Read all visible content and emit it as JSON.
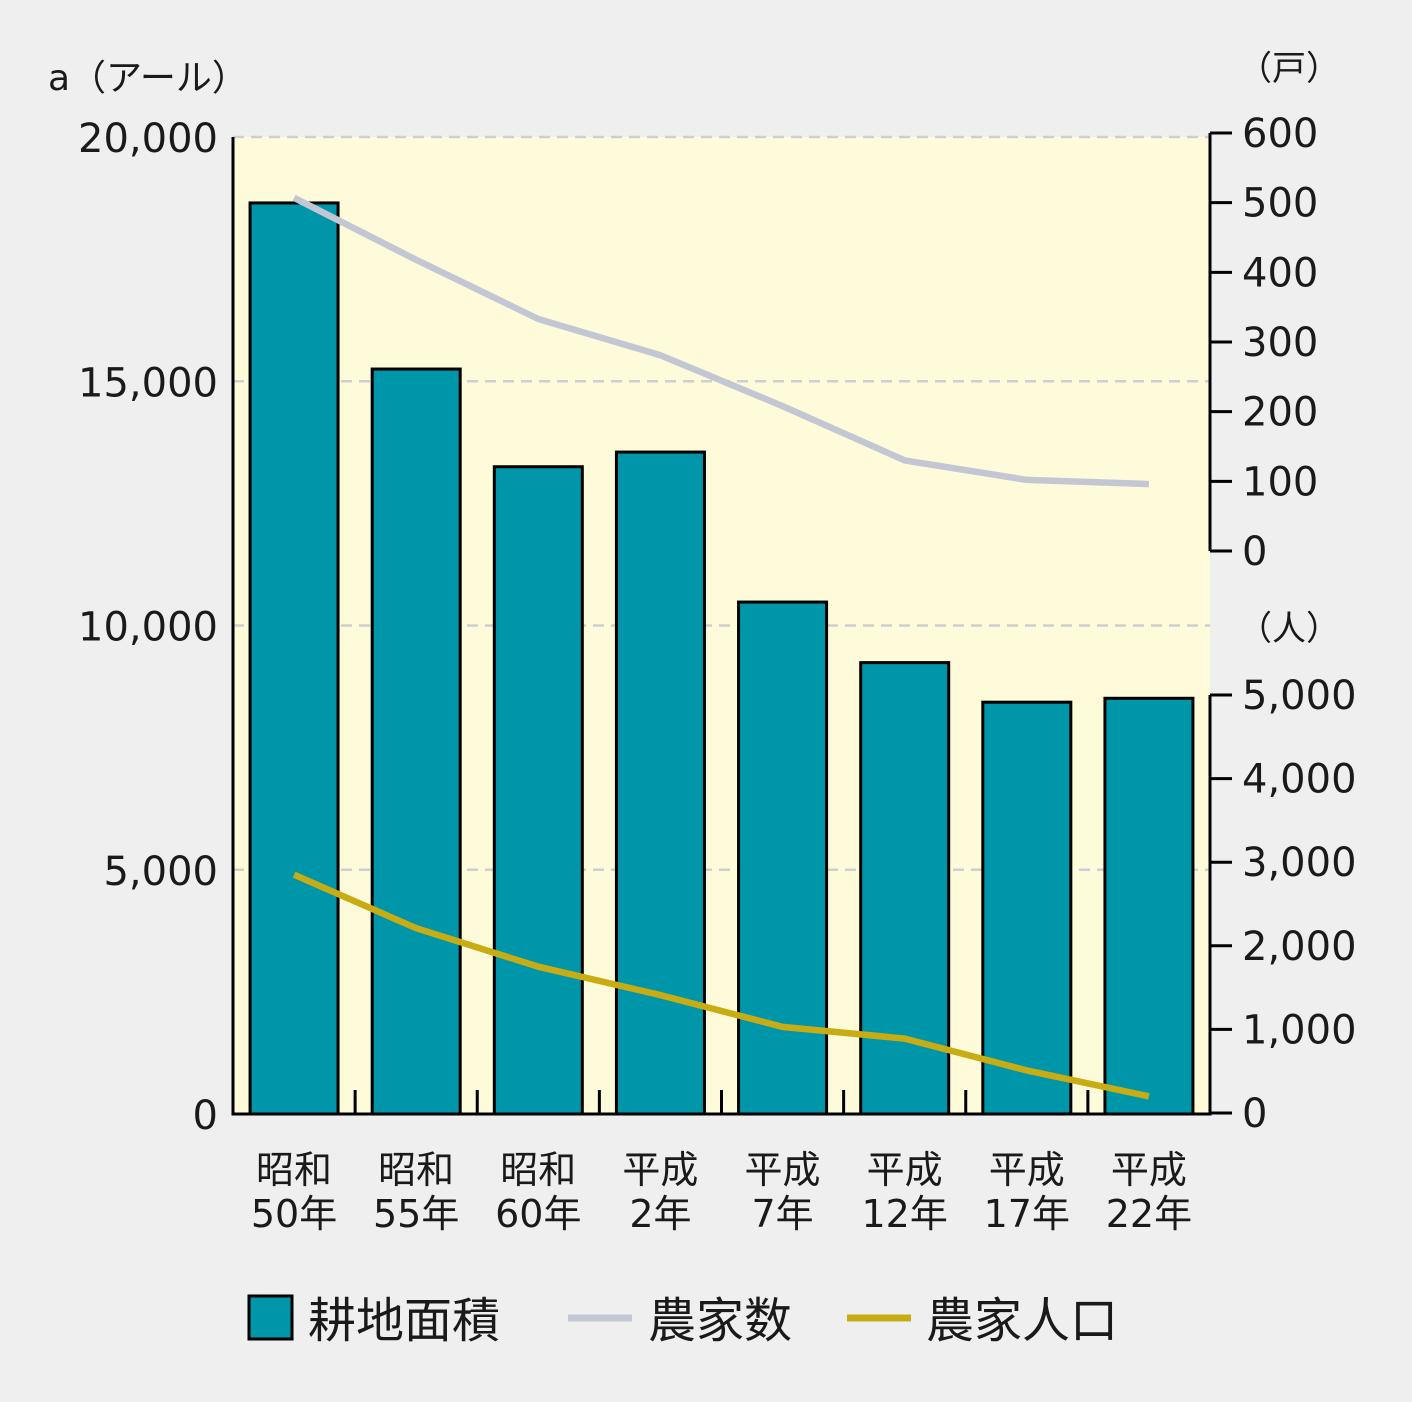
{
  "chart_data": {
    "type": "bar",
    "categories": [
      [
        "昭和",
        "50年"
      ],
      [
        "昭和",
        "55年"
      ],
      [
        "昭和",
        "60年"
      ],
      [
        "平成",
        "2年"
      ],
      [
        "平成",
        "7年"
      ],
      [
        "平成",
        "12年"
      ],
      [
        "平成",
        "17年"
      ],
      [
        "平成",
        "22年"
      ]
    ],
    "y_left": {
      "label": "a（アール）",
      "ylim": [
        0,
        20000
      ],
      "ticks": [
        0,
        5000,
        10000,
        15000,
        20000
      ],
      "tick_labels": [
        "0",
        "5,000",
        "10,000",
        "15,000",
        "20,000"
      ]
    },
    "y_right_households": {
      "label": "（戸）",
      "ylim": [
        0,
        600
      ],
      "ticks": [
        0,
        100,
        200,
        300,
        400,
        500,
        600
      ],
      "tick_labels": [
        "0",
        "100",
        "200",
        "300",
        "400",
        "500",
        "600"
      ]
    },
    "y_right_population": {
      "label": "（人）",
      "ylim": [
        0,
        5000
      ],
      "ticks": [
        0,
        1000,
        2000,
        3000,
        4000,
        5000
      ],
      "tick_labels": [
        "0",
        "1,000",
        "2,000",
        "3,000",
        "4,000",
        "5,000"
      ]
    },
    "series": [
      {
        "name": "耕地面積",
        "kind": "bar",
        "axis": "left",
        "color": "#0096aa",
        "values": [
          18650,
          15250,
          13250,
          13550,
          10480,
          9240,
          8430,
          8510
        ]
      },
      {
        "name": "農家数",
        "kind": "line",
        "axis": "right_households",
        "color": "#c3c7d4",
        "values": [
          507,
          418,
          333,
          281,
          208,
          130,
          102,
          96
        ]
      },
      {
        "name": "農家人口",
        "kind": "line",
        "axis": "right_population",
        "color": "#c8ac14",
        "values": [
          2850,
          2210,
          1750,
          1410,
          1030,
          890,
          510,
          200
        ]
      }
    ],
    "grid": true,
    "legend_position": "bottom"
  }
}
